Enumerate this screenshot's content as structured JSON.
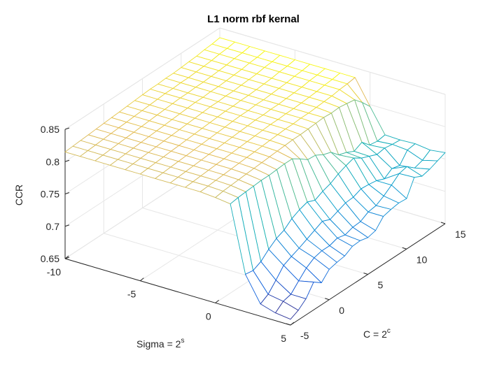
{
  "chart_data": {
    "type": "surface",
    "title": "L1 norm rbf kernal",
    "xlabel": "Sigma = 2",
    "xlabel_sup": "s",
    "ylabel": "C = 2",
    "ylabel_sup": "c",
    "zlabel": "CCR",
    "xlim": [
      -10,
      5
    ],
    "ylim": [
      -5,
      15
    ],
    "zlim": [
      0.65,
      0.85
    ],
    "x_ticks": [
      "-10",
      "-5",
      "0",
      "5"
    ],
    "y_ticks": [
      "-5",
      "0",
      "5",
      "10",
      "15"
    ],
    "z_ticks": [
      "0.65",
      "0.7",
      "0.75",
      "0.8",
      "0.85"
    ],
    "colormap": "parula",
    "grid": true,
    "sigma": [
      -10,
      -9,
      -8,
      -7,
      -6,
      -5,
      -4,
      -3,
      -2,
      -1,
      0,
      1,
      2,
      3,
      4,
      5
    ],
    "c": [
      -5,
      -4,
      -3,
      -2,
      -1,
      0,
      1,
      2,
      3,
      4,
      5,
      6,
      7,
      8,
      9,
      10,
      11,
      12,
      13,
      14,
      15
    ],
    "ccr_description": "rows indexed by sigma (ascending), columns by c (ascending)",
    "ccr": [
      [
        0.815,
        0.816,
        0.817,
        0.818,
        0.819,
        0.82,
        0.821,
        0.822,
        0.823,
        0.824,
        0.825,
        0.826,
        0.826,
        0.827,
        0.827,
        0.828,
        0.829,
        0.83,
        0.832,
        0.833,
        0.835
      ],
      [
        0.815,
        0.816,
        0.817,
        0.818,
        0.819,
        0.82,
        0.821,
        0.822,
        0.823,
        0.824,
        0.825,
        0.826,
        0.826,
        0.827,
        0.827,
        0.828,
        0.829,
        0.83,
        0.832,
        0.833,
        0.835
      ],
      [
        0.815,
        0.816,
        0.817,
        0.818,
        0.819,
        0.82,
        0.821,
        0.822,
        0.823,
        0.824,
        0.825,
        0.826,
        0.826,
        0.827,
        0.827,
        0.828,
        0.829,
        0.83,
        0.832,
        0.833,
        0.835
      ],
      [
        0.815,
        0.816,
        0.817,
        0.818,
        0.819,
        0.82,
        0.821,
        0.822,
        0.823,
        0.824,
        0.825,
        0.826,
        0.826,
        0.827,
        0.827,
        0.828,
        0.829,
        0.83,
        0.832,
        0.833,
        0.835
      ],
      [
        0.815,
        0.816,
        0.817,
        0.818,
        0.819,
        0.82,
        0.821,
        0.822,
        0.823,
        0.824,
        0.825,
        0.826,
        0.826,
        0.827,
        0.827,
        0.828,
        0.829,
        0.83,
        0.832,
        0.833,
        0.835
      ],
      [
        0.815,
        0.816,
        0.817,
        0.818,
        0.819,
        0.82,
        0.821,
        0.822,
        0.823,
        0.824,
        0.825,
        0.826,
        0.826,
        0.827,
        0.827,
        0.828,
        0.829,
        0.83,
        0.832,
        0.833,
        0.835
      ],
      [
        0.815,
        0.816,
        0.817,
        0.818,
        0.819,
        0.82,
        0.821,
        0.822,
        0.823,
        0.824,
        0.825,
        0.826,
        0.826,
        0.827,
        0.827,
        0.828,
        0.829,
        0.83,
        0.832,
        0.833,
        0.835
      ],
      [
        0.815,
        0.816,
        0.817,
        0.818,
        0.819,
        0.82,
        0.821,
        0.822,
        0.823,
        0.824,
        0.825,
        0.826,
        0.826,
        0.827,
        0.827,
        0.828,
        0.829,
        0.83,
        0.832,
        0.833,
        0.835
      ],
      [
        0.815,
        0.816,
        0.817,
        0.818,
        0.819,
        0.82,
        0.821,
        0.822,
        0.823,
        0.824,
        0.825,
        0.826,
        0.826,
        0.827,
        0.827,
        0.828,
        0.829,
        0.83,
        0.832,
        0.833,
        0.835
      ],
      [
        0.815,
        0.816,
        0.817,
        0.818,
        0.819,
        0.82,
        0.821,
        0.822,
        0.823,
        0.824,
        0.825,
        0.826,
        0.826,
        0.827,
        0.827,
        0.828,
        0.829,
        0.83,
        0.832,
        0.833,
        0.835
      ],
      [
        0.813,
        0.815,
        0.816,
        0.817,
        0.818,
        0.819,
        0.82,
        0.821,
        0.822,
        0.823,
        0.824,
        0.824,
        0.825,
        0.826,
        0.827,
        0.826,
        0.827,
        0.825,
        0.823,
        0.811,
        0.797
      ],
      [
        0.81,
        0.812,
        0.813,
        0.814,
        0.815,
        0.815,
        0.816,
        0.817,
        0.817,
        0.809,
        0.8,
        0.799,
        0.792,
        0.788,
        0.776,
        0.772,
        0.766,
        0.772,
        0.76,
        0.758,
        0.76
      ],
      [
        0.708,
        0.706,
        0.712,
        0.723,
        0.732,
        0.737,
        0.747,
        0.753,
        0.757,
        0.752,
        0.758,
        0.762,
        0.769,
        0.774,
        0.778,
        0.77,
        0.765,
        0.76,
        0.762,
        0.76,
        0.759
      ],
      [
        0.669,
        0.676,
        0.69,
        0.705,
        0.711,
        0.716,
        0.722,
        0.728,
        0.734,
        0.729,
        0.734,
        0.739,
        0.74,
        0.745,
        0.744,
        0.742,
        0.737,
        0.745,
        0.742,
        0.758,
        0.76
      ],
      [
        0.662,
        0.672,
        0.675,
        0.688,
        0.7,
        0.708,
        0.711,
        0.711,
        0.715,
        0.712,
        0.716,
        0.717,
        0.724,
        0.726,
        0.733,
        0.742,
        0.752,
        0.755,
        0.745,
        0.749,
        0.757
      ],
      [
        0.659,
        0.665,
        0.675,
        0.693,
        0.684,
        0.697,
        0.7,
        0.702,
        0.709,
        0.71,
        0.707,
        0.71,
        0.724,
        0.727,
        0.729,
        0.728,
        0.753,
        0.747,
        0.75,
        0.755,
        0.76
      ]
    ]
  }
}
